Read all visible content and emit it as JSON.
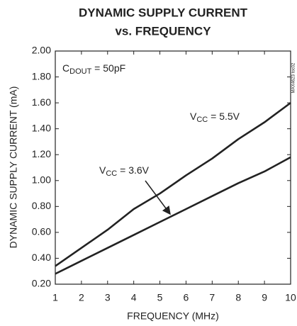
{
  "chart_data": {
    "type": "line",
    "title": "DYNAMIC SUPPLY CURRENT",
    "subtitle": "vs. FREQUENCY",
    "x_label": "FREQUENCY (MHz)",
    "y_label": "DYNAMIC SUPPLY CURRENT (mA)",
    "side_note": "MAX4623 toc02",
    "condition": {
      "main": "C",
      "sub": "DOUT",
      "rest": " = 50pF"
    },
    "x": [
      1,
      2,
      3,
      4,
      5,
      6,
      7,
      8,
      9,
      10
    ],
    "series": [
      {
        "label": {
          "main": "V",
          "sub": "CC",
          "rest": " = 5.5V"
        },
        "color": "#222222",
        "values": [
          0.34,
          0.48,
          0.62,
          0.78,
          0.9,
          1.04,
          1.17,
          1.32,
          1.45,
          1.6
        ]
      },
      {
        "label": {
          "main": "V",
          "sub": "CC",
          "rest": " = 3.6V"
        },
        "color": "#222222",
        "values": [
          0.28,
          0.38,
          0.48,
          0.58,
          0.68,
          0.78,
          0.88,
          0.98,
          1.07,
          1.18
        ]
      }
    ],
    "xlim": [
      1,
      10
    ],
    "ylim": [
      0.2,
      2.0
    ],
    "xticks": [
      1,
      2,
      3,
      4,
      5,
      6,
      7,
      8,
      9,
      10
    ],
    "yticks": [
      {
        "value": 0.2,
        "label": "0.20"
      },
      {
        "value": 0.4,
        "label": "0.40"
      },
      {
        "value": 0.6,
        "label": "0.60"
      },
      {
        "value": 0.8,
        "label": "0.80"
      },
      {
        "value": 1.0,
        "label": "1.00"
      },
      {
        "value": 1.2,
        "label": "1.20"
      },
      {
        "value": 1.4,
        "label": "1.40"
      },
      {
        "value": 1.6,
        "label": "1.60"
      },
      {
        "value": 1.8,
        "label": "1.80"
      },
      {
        "value": 2.0,
        "label": "2.00"
      }
    ],
    "grid": false
  }
}
